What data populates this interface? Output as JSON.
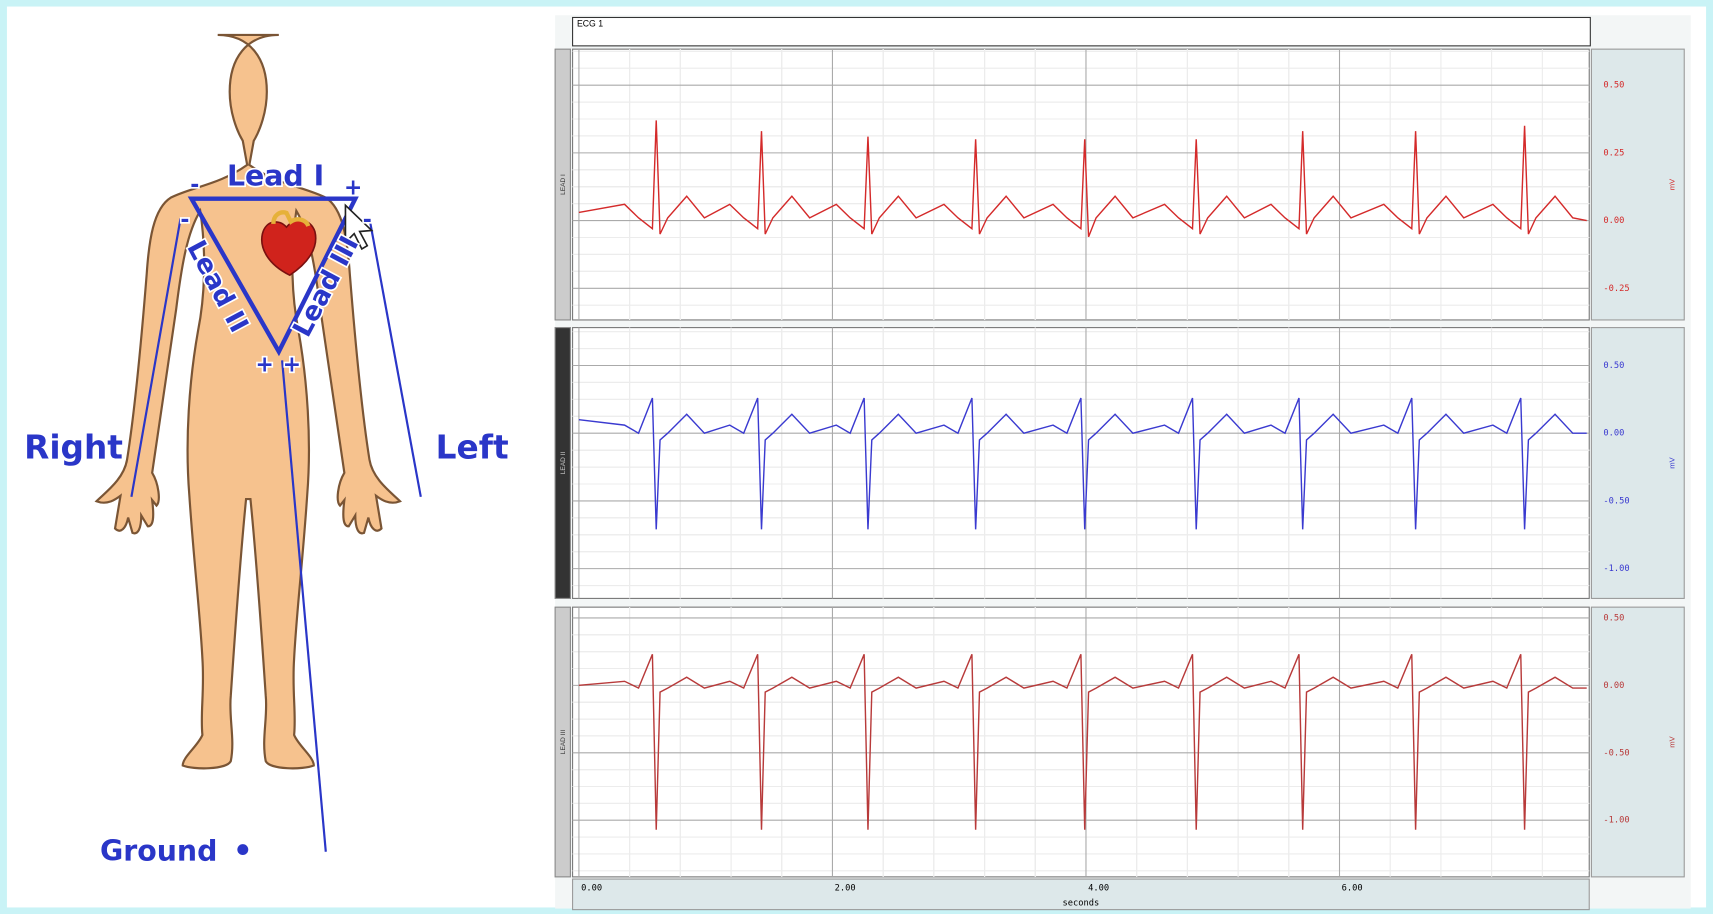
{
  "header": {
    "title": "ECG 1"
  },
  "diagram": {
    "lead_1": "Lead I",
    "lead_2": "Lead II",
    "lead_3": "Lead III",
    "right": "Right",
    "left": "Left",
    "ground": "Ground",
    "signs": [
      "-",
      "+",
      "-",
      "-",
      "+",
      "+"
    ]
  },
  "chart_data": [
    {
      "type": "line",
      "channel": "LEAD I",
      "y_label": "mV",
      "color": "#d42a2a",
      "xlim": [
        -0.05,
        7.97
      ],
      "ylim": [
        -0.367,
        0.633
      ],
      "yticks": [
        {
          "value": 0.5,
          "label": "0.50"
        },
        {
          "value": 0.25,
          "label": "0.25"
        },
        {
          "value": 0,
          "label": "0.00"
        },
        {
          "value": -0.25,
          "label": "-0.25"
        }
      ],
      "x": [
        0,
        0.36,
        0.47,
        0.58,
        0.61,
        0.64,
        0.7,
        0.85,
        0.99,
        1.19,
        1.3,
        1.41,
        1.44,
        1.47,
        1.53,
        1.68,
        1.82,
        2.03,
        2.14,
        2.25,
        2.28,
        2.31,
        2.37,
        2.52,
        2.66,
        2.88,
        2.99,
        3.1,
        3.13,
        3.16,
        3.22,
        3.37,
        3.51,
        3.74,
        3.85,
        3.96,
        3.99,
        4.02,
        4.08,
        4.23,
        4.37,
        4.62,
        4.73,
        4.84,
        4.87,
        4.9,
        4.96,
        5.11,
        5.25,
        5.46,
        5.57,
        5.68,
        5.71,
        5.74,
        5.8,
        5.95,
        6.09,
        6.35,
        6.46,
        6.57,
        6.6,
        6.63,
        6.69,
        6.84,
        6.98,
        7.21,
        7.32,
        7.43,
        7.46,
        7.49,
        7.55,
        7.7,
        7.84,
        7.95
      ],
      "values": [
        0.03,
        0.06,
        0.01,
        -0.03,
        0.37,
        -0.05,
        0.01,
        0.09,
        0.01,
        0.06,
        0.01,
        -0.03,
        0.33,
        -0.05,
        0.01,
        0.09,
        0.01,
        0.06,
        0.01,
        -0.03,
        0.31,
        -0.05,
        0.01,
        0.09,
        0.01,
        0.06,
        0.01,
        -0.03,
        0.3,
        -0.05,
        0.01,
        0.09,
        0.01,
        0.06,
        0.01,
        -0.03,
        0.3,
        -0.06,
        0.01,
        0.09,
        0.01,
        0.06,
        0.01,
        -0.03,
        0.3,
        -0.05,
        0.01,
        0.09,
        0.01,
        0.06,
        0.01,
        -0.03,
        0.33,
        -0.05,
        0.01,
        0.09,
        0.01,
        0.06,
        0.01,
        -0.03,
        0.33,
        -0.05,
        0.01,
        0.09,
        0.01,
        0.06,
        0.01,
        -0.03,
        0.35,
        -0.05,
        0.01,
        0.09,
        0.01,
        0.0
      ]
    },
    {
      "type": "line",
      "channel": "LEAD II",
      "y_label": "mV",
      "color": "#3a3ad0",
      "xlim": [
        -0.05,
        7.97
      ],
      "ylim": [
        -1.22,
        0.78
      ],
      "yticks": [
        {
          "value": 0.5,
          "label": "0.50"
        },
        {
          "value": 0,
          "label": "0.00"
        },
        {
          "value": -0.5,
          "label": "-0.50"
        },
        {
          "value": -1,
          "label": "-1.00"
        }
      ],
      "x": [
        0,
        0.36,
        0.47,
        0.58,
        0.61,
        0.64,
        0.7,
        0.85,
        0.99,
        1.19,
        1.3,
        1.41,
        1.44,
        1.47,
        1.53,
        1.68,
        1.82,
        2.03,
        2.14,
        2.25,
        2.28,
        2.31,
        2.37,
        2.52,
        2.66,
        2.88,
        2.99,
        3.1,
        3.13,
        3.16,
        3.22,
        3.37,
        3.51,
        3.74,
        3.85,
        3.96,
        3.99,
        4.02,
        4.08,
        4.23,
        4.37,
        4.62,
        4.73,
        4.84,
        4.87,
        4.9,
        4.96,
        5.11,
        5.25,
        5.46,
        5.57,
        5.68,
        5.71,
        5.74,
        5.8,
        5.95,
        6.09,
        6.35,
        6.46,
        6.57,
        6.6,
        6.63,
        6.69,
        6.84,
        6.98,
        7.21,
        7.32,
        7.43,
        7.46,
        7.49,
        7.55,
        7.7,
        7.84,
        7.95
      ],
      "values": [
        0.1,
        0.06,
        0,
        0.26,
        -0.71,
        -0.05,
        0,
        0.14,
        0,
        0.06,
        0,
        0.26,
        -0.71,
        -0.05,
        0,
        0.14,
        0,
        0.06,
        0,
        0.26,
        -0.71,
        -0.05,
        0,
        0.14,
        0,
        0.06,
        0,
        0.26,
        -0.71,
        -0.05,
        0,
        0.14,
        0,
        0.06,
        0,
        0.26,
        -0.71,
        -0.05,
        0,
        0.14,
        0,
        0.06,
        0,
        0.26,
        -0.71,
        -0.05,
        0,
        0.14,
        0,
        0.06,
        0,
        0.26,
        -0.71,
        -0.05,
        0,
        0.14,
        0,
        0.06,
        0,
        0.26,
        -0.71,
        -0.05,
        0,
        0.14,
        0,
        0.06,
        0,
        0.26,
        -0.71,
        -0.05,
        0,
        0.14,
        0,
        0.0
      ]
    },
    {
      "type": "line",
      "channel": "LEAD III",
      "y_label": "mV",
      "color": "#b83a3a",
      "xlim": [
        -0.05,
        7.97
      ],
      "ylim": [
        -1.42,
        0.58
      ],
      "yticks": [
        {
          "value": 0.5,
          "label": "0.50"
        },
        {
          "value": 0,
          "label": "0.00"
        },
        {
          "value": -0.5,
          "label": "-0.50"
        },
        {
          "value": -1,
          "label": "-1.00"
        }
      ],
      "xticks": [
        {
          "value": 0,
          "label": "0.00"
        },
        {
          "value": 2,
          "label": "2.00"
        },
        {
          "value": 4,
          "label": "4.00"
        },
        {
          "value": 6,
          "label": "6.00"
        }
      ],
      "x_label": "seconds",
      "x": [
        0,
        0.36,
        0.47,
        0.58,
        0.61,
        0.64,
        0.7,
        0.85,
        0.99,
        1.19,
        1.3,
        1.41,
        1.44,
        1.47,
        1.53,
        1.68,
        1.82,
        2.03,
        2.14,
        2.25,
        2.28,
        2.31,
        2.37,
        2.52,
        2.66,
        2.88,
        2.99,
        3.1,
        3.13,
        3.16,
        3.22,
        3.37,
        3.51,
        3.74,
        3.85,
        3.96,
        3.99,
        4.02,
        4.08,
        4.23,
        4.37,
        4.62,
        4.73,
        4.84,
        4.87,
        4.9,
        4.96,
        5.11,
        5.25,
        5.46,
        5.57,
        5.68,
        5.71,
        5.74,
        5.8,
        5.95,
        6.09,
        6.35,
        6.46,
        6.57,
        6.6,
        6.63,
        6.69,
        6.84,
        6.98,
        7.21,
        7.32,
        7.43,
        7.46,
        7.49,
        7.55,
        7.7,
        7.84,
        7.95
      ],
      "values": [
        0.0,
        0.03,
        -0.02,
        0.23,
        -1.07,
        -0.05,
        -0.02,
        0.06,
        -0.02,
        0.03,
        -0.02,
        0.23,
        -1.07,
        -0.05,
        -0.02,
        0.06,
        -0.02,
        0.03,
        -0.02,
        0.23,
        -1.07,
        -0.05,
        -0.02,
        0.06,
        -0.02,
        0.03,
        -0.02,
        0.23,
        -1.07,
        -0.05,
        -0.02,
        0.06,
        -0.02,
        0.03,
        -0.02,
        0.23,
        -1.07,
        -0.05,
        -0.02,
        0.06,
        -0.02,
        0.03,
        -0.02,
        0.23,
        -1.07,
        -0.05,
        -0.02,
        0.06,
        -0.02,
        0.03,
        -0.02,
        0.23,
        -1.07,
        -0.05,
        -0.02,
        0.06,
        -0.02,
        0.03,
        -0.02,
        0.23,
        -1.07,
        -0.05,
        -0.02,
        0.06,
        -0.02,
        0.03,
        -0.02,
        0.23,
        -1.07,
        -0.05,
        -0.02,
        0.06,
        -0.02,
        -0.02
      ]
    }
  ]
}
